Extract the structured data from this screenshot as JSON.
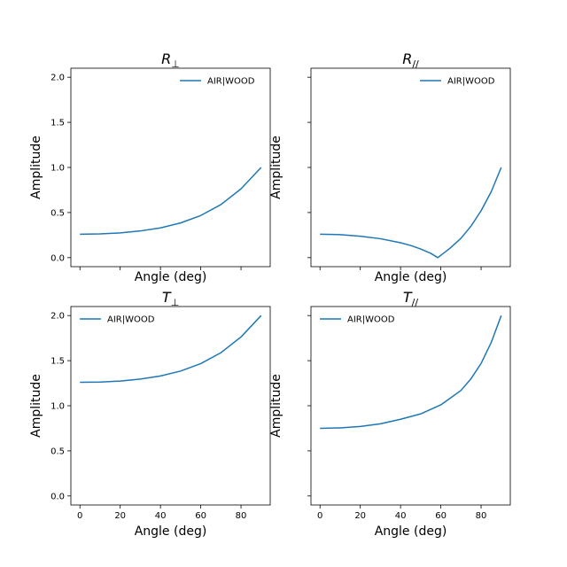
{
  "chart_data": [
    {
      "type": "line",
      "title": "R",
      "title_sub": "⊥",
      "xlabel": "Angle (deg)",
      "ylabel": "Amplitude",
      "xlim": [
        -4.5,
        94.5
      ],
      "ylim": [
        -0.1,
        2.1
      ],
      "xticks": [
        0,
        20,
        40,
        60,
        80
      ],
      "yticks": [
        0.0,
        0.5,
        1.0,
        1.5,
        2.0
      ],
      "ytick_labels": [
        "0.0",
        "0.5",
        "1.0",
        "1.5",
        "2.0"
      ],
      "show_xticklabels": false,
      "show_yticklabels": true,
      "legend_position": "upper-right",
      "series": [
        {
          "name": "AIR|WOOD",
          "color": "#1f77b4",
          "x": [
            0,
            10,
            20,
            30,
            40,
            50,
            60,
            70,
            80,
            90
          ],
          "y": [
            0.26,
            0.263,
            0.274,
            0.296,
            0.33,
            0.385,
            0.467,
            0.588,
            0.763,
            1.0
          ]
        }
      ]
    },
    {
      "type": "line",
      "title": "R",
      "title_sub": "//",
      "xlabel": "Angle (deg)",
      "ylabel": "Amplitude",
      "xlim": [
        -4.5,
        94.5
      ],
      "ylim": [
        -0.1,
        2.1
      ],
      "xticks": [
        0,
        20,
        40,
        60,
        80
      ],
      "yticks": [
        0.0,
        0.5,
        1.0,
        1.5,
        2.0
      ],
      "ytick_labels": [
        "0.0",
        "0.5",
        "1.0",
        "1.5",
        "2.0"
      ],
      "show_xticklabels": false,
      "show_yticklabels": false,
      "legend_position": "upper-right",
      "series": [
        {
          "name": "AIR|WOOD",
          "color": "#1f77b4",
          "x": [
            0,
            10,
            20,
            30,
            40,
            45,
            50,
            55,
            58.5,
            62,
            65,
            70,
            75,
            80,
            85,
            90
          ],
          "y": [
            0.26,
            0.255,
            0.238,
            0.21,
            0.165,
            0.135,
            0.096,
            0.048,
            0.0,
            0.06,
            0.113,
            0.215,
            0.35,
            0.52,
            0.73,
            1.0
          ]
        }
      ]
    },
    {
      "type": "line",
      "title": "T",
      "title_sub": "⊥",
      "xlabel": "Angle (deg)",
      "ylabel": "Amplitude",
      "xlim": [
        -4.5,
        94.5
      ],
      "ylim": [
        -0.1,
        2.1
      ],
      "xticks": [
        0,
        20,
        40,
        60,
        80
      ],
      "yticks": [
        0.0,
        0.5,
        1.0,
        1.5,
        2.0
      ],
      "ytick_labels": [
        "0.0",
        "0.5",
        "1.0",
        "1.5",
        "2.0"
      ],
      "show_xticklabels": true,
      "show_yticklabels": true,
      "legend_position": "upper-left",
      "series": [
        {
          "name": "AIR|WOOD",
          "color": "#1f77b4",
          "x": [
            0,
            10,
            20,
            30,
            40,
            50,
            60,
            70,
            80,
            90
          ],
          "y": [
            1.26,
            1.263,
            1.274,
            1.296,
            1.33,
            1.385,
            1.467,
            1.588,
            1.763,
            2.0
          ]
        }
      ]
    },
    {
      "type": "line",
      "title": "T",
      "title_sub": "//",
      "xlabel": "Angle (deg)",
      "ylabel": "Amplitude",
      "xlim": [
        -4.5,
        94.5
      ],
      "ylim": [
        -0.1,
        2.1
      ],
      "xticks": [
        0,
        20,
        40,
        60,
        80
      ],
      "yticks": [
        0.0,
        0.5,
        1.0,
        1.5,
        2.0
      ],
      "ytick_labels": [
        "0.0",
        "0.5",
        "1.0",
        "1.5",
        "2.0"
      ],
      "show_xticklabels": true,
      "show_yticklabels": false,
      "legend_position": "upper-left",
      "series": [
        {
          "name": "AIR|WOOD",
          "color": "#1f77b4",
          "x": [
            0,
            10,
            20,
            30,
            40,
            50,
            60,
            70,
            75,
            80,
            85,
            90
          ],
          "y": [
            0.75,
            0.755,
            0.77,
            0.8,
            0.85,
            0.91,
            1.01,
            1.17,
            1.3,
            1.47,
            1.7,
            2.0
          ]
        }
      ]
    }
  ]
}
